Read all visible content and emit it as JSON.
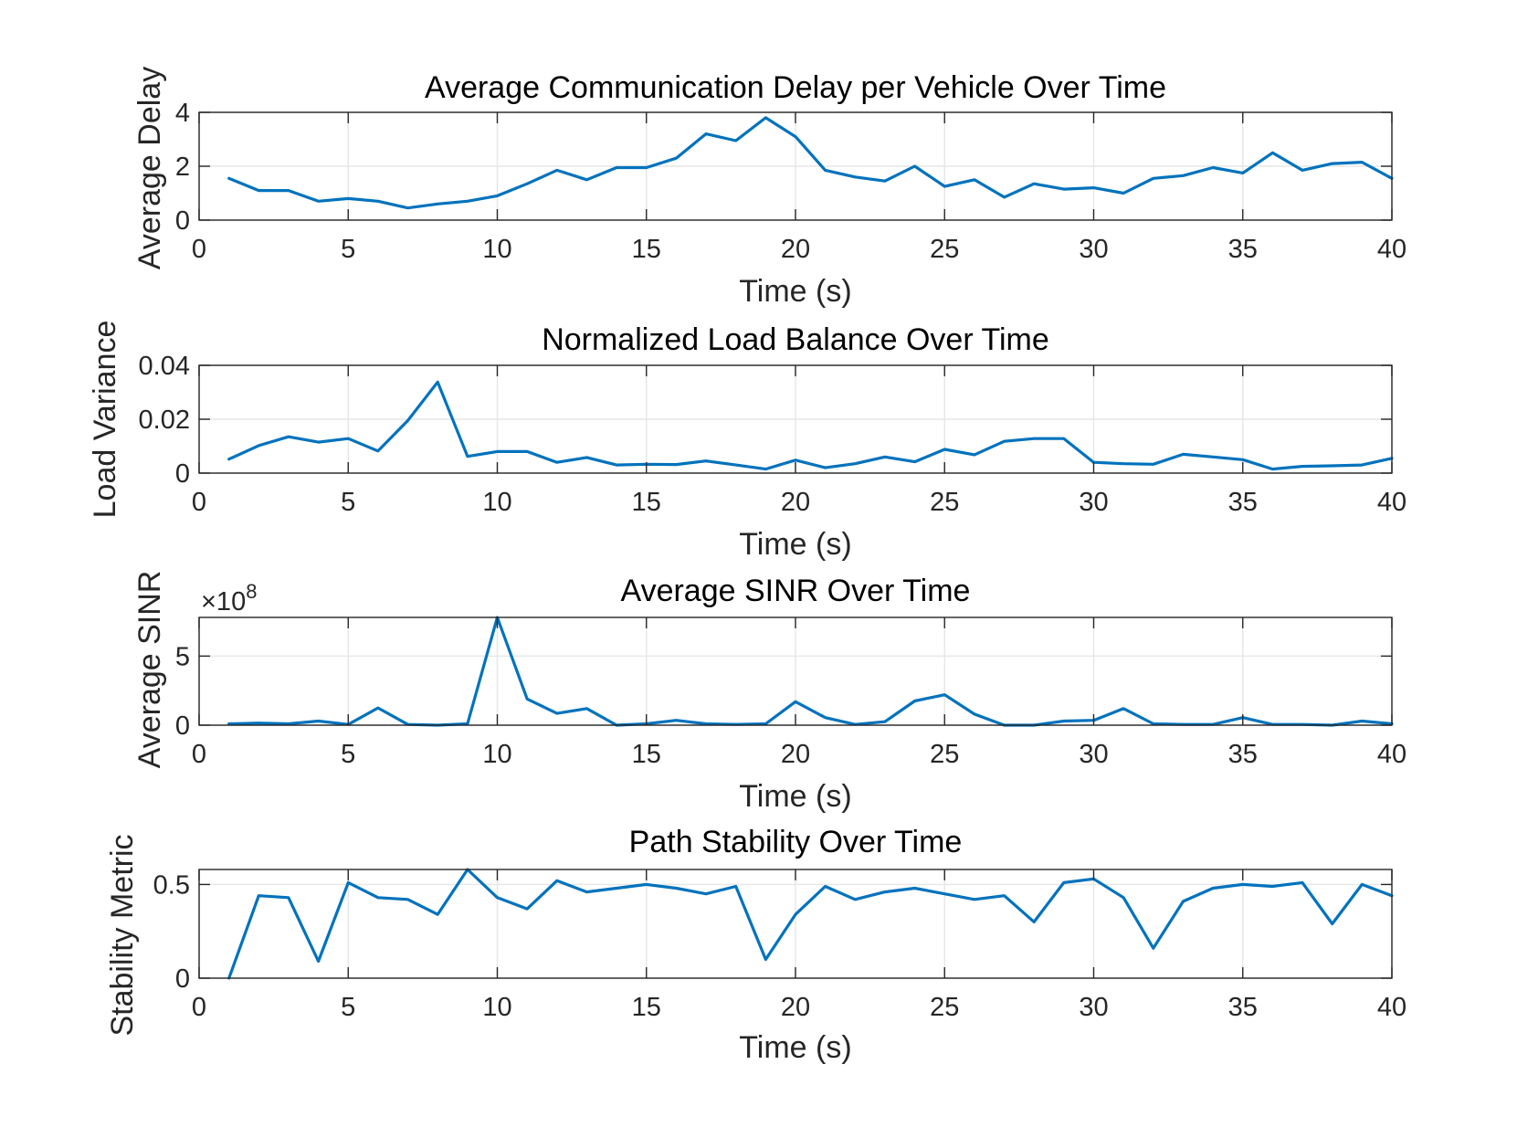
{
  "figure": {
    "line_color": "#0072BD"
  },
  "chart_data": [
    {
      "type": "line",
      "title": "Average Communication Delay per Vehicle Over Time",
      "xlabel": "Time (s)",
      "ylabel": "Average Delay",
      "xlim": [
        0,
        40
      ],
      "ylim": [
        0,
        4
      ],
      "xticks": [
        0,
        5,
        10,
        15,
        20,
        25,
        30,
        35,
        40
      ],
      "xtick_labels": [
        "0",
        "5",
        "10",
        "15",
        "20",
        "25",
        "30",
        "35",
        "40"
      ],
      "yticks": [
        0,
        2,
        4
      ],
      "ytick_labels": [
        "0",
        "2",
        "4"
      ],
      "exponent_label": null,
      "grid": true,
      "x": [
        1,
        2,
        3,
        4,
        5,
        6,
        7,
        8,
        9,
        10,
        11,
        12,
        13,
        14,
        15,
        16,
        17,
        18,
        19,
        20,
        21,
        22,
        23,
        24,
        25,
        26,
        27,
        28,
        29,
        30,
        31,
        32,
        33,
        34,
        35,
        36,
        37,
        38,
        39,
        40
      ],
      "y": [
        1.55,
        1.1,
        1.1,
        0.7,
        0.8,
        0.7,
        0.45,
        0.6,
        0.7,
        0.9,
        1.35,
        1.85,
        1.5,
        1.95,
        1.95,
        2.3,
        3.2,
        2.95,
        3.8,
        3.1,
        1.85,
        1.6,
        1.45,
        2.0,
        1.25,
        1.5,
        0.85,
        1.35,
        1.15,
        1.2,
        1.0,
        1.55,
        1.65,
        1.95,
        1.75,
        2.5,
        1.85,
        2.1,
        2.15,
        1.55
      ]
    },
    {
      "type": "line",
      "title": "Normalized Load Balance Over Time",
      "xlabel": "Time (s)",
      "ylabel": "Load Variance",
      "xlim": [
        0,
        40
      ],
      "ylim": [
        0,
        0.04
      ],
      "xticks": [
        0,
        5,
        10,
        15,
        20,
        25,
        30,
        35,
        40
      ],
      "xtick_labels": [
        "0",
        "5",
        "10",
        "15",
        "20",
        "25",
        "30",
        "35",
        "40"
      ],
      "yticks": [
        0,
        0.02,
        0.04
      ],
      "ytick_labels": [
        "0",
        "0.02",
        "0.04"
      ],
      "exponent_label": null,
      "grid": true,
      "x": [
        1,
        2,
        3,
        4,
        5,
        6,
        7,
        8,
        9,
        10,
        11,
        12,
        13,
        14,
        15,
        16,
        17,
        18,
        19,
        20,
        21,
        22,
        23,
        24,
        25,
        26,
        27,
        28,
        29,
        30,
        31,
        32,
        33,
        34,
        35,
        36,
        37,
        38,
        39,
        40
      ],
      "y": [
        0.0052,
        0.0102,
        0.0135,
        0.0115,
        0.0128,
        0.0082,
        0.0195,
        0.0338,
        0.0062,
        0.008,
        0.008,
        0.004,
        0.0058,
        0.003,
        0.0033,
        0.0032,
        0.0045,
        0.003,
        0.0015,
        0.0048,
        0.002,
        0.0035,
        0.006,
        0.0042,
        0.0088,
        0.0068,
        0.0118,
        0.0128,
        0.0128,
        0.004,
        0.0035,
        0.0033,
        0.007,
        0.006,
        0.005,
        0.0015,
        0.0025,
        0.0027,
        0.003,
        0.0055
      ]
    },
    {
      "type": "line",
      "title": "Average SINR Over Time",
      "xlabel": "Time (s)",
      "ylabel": "Average SINR",
      "xlim": [
        0,
        40
      ],
      "ylim": [
        0,
        7.8
      ],
      "xticks": [
        0,
        5,
        10,
        15,
        20,
        25,
        30,
        35,
        40
      ],
      "xtick_labels": [
        "0",
        "5",
        "10",
        "15",
        "20",
        "25",
        "30",
        "35",
        "40"
      ],
      "yticks": [
        0,
        5
      ],
      "ytick_labels": [
        "0",
        "5"
      ],
      "exponent_label": {
        "base": "×10",
        "power": "8"
      },
      "grid": true,
      "x": [
        1,
        2,
        3,
        4,
        5,
        6,
        7,
        8,
        9,
        10,
        11,
        12,
        13,
        14,
        15,
        16,
        17,
        18,
        19,
        20,
        21,
        22,
        23,
        24,
        25,
        26,
        27,
        28,
        29,
        30,
        31,
        32,
        33,
        34,
        35,
        36,
        37,
        38,
        39,
        40
      ],
      "y": [
        0.1,
        0.15,
        0.1,
        0.3,
        0.05,
        1.25,
        0.05,
        0.0,
        0.1,
        7.8,
        1.9,
        0.85,
        1.2,
        0.0,
        0.1,
        0.35,
        0.1,
        0.05,
        0.1,
        1.7,
        0.55,
        0.05,
        0.25,
        1.75,
        2.2,
        0.8,
        0.0,
        0.0,
        0.3,
        0.35,
        1.2,
        0.1,
        0.05,
        0.05,
        0.55,
        0.05,
        0.05,
        0.0,
        0.3,
        0.1
      ]
    },
    {
      "type": "line",
      "title": "Path Stability Over Time",
      "xlabel": "Time (s)",
      "ylabel": "Stability Metric",
      "xlim": [
        0,
        40
      ],
      "ylim": [
        0,
        0.58
      ],
      "xticks": [
        0,
        5,
        10,
        15,
        20,
        25,
        30,
        35,
        40
      ],
      "xtick_labels": [
        "0",
        "5",
        "10",
        "15",
        "20",
        "25",
        "30",
        "35",
        "40"
      ],
      "yticks": [
        0,
        0.5
      ],
      "ytick_labels": [
        "0",
        "0.5"
      ],
      "exponent_label": null,
      "grid": true,
      "x": [
        1,
        2,
        3,
        4,
        5,
        6,
        7,
        8,
        9,
        10,
        11,
        12,
        13,
        14,
        15,
        16,
        17,
        18,
        19,
        20,
        21,
        22,
        23,
        24,
        25,
        26,
        27,
        28,
        29,
        30,
        31,
        32,
        33,
        34,
        35,
        36,
        37,
        38,
        39,
        40
      ],
      "y": [
        0.0,
        0.44,
        0.43,
        0.09,
        0.51,
        0.43,
        0.42,
        0.34,
        0.58,
        0.43,
        0.37,
        0.52,
        0.46,
        0.48,
        0.5,
        0.48,
        0.45,
        0.49,
        0.1,
        0.34,
        0.49,
        0.42,
        0.46,
        0.48,
        0.45,
        0.42,
        0.44,
        0.3,
        0.51,
        0.53,
        0.43,
        0.16,
        0.41,
        0.48,
        0.5,
        0.49,
        0.51,
        0.29,
        0.5,
        0.44
      ]
    }
  ]
}
